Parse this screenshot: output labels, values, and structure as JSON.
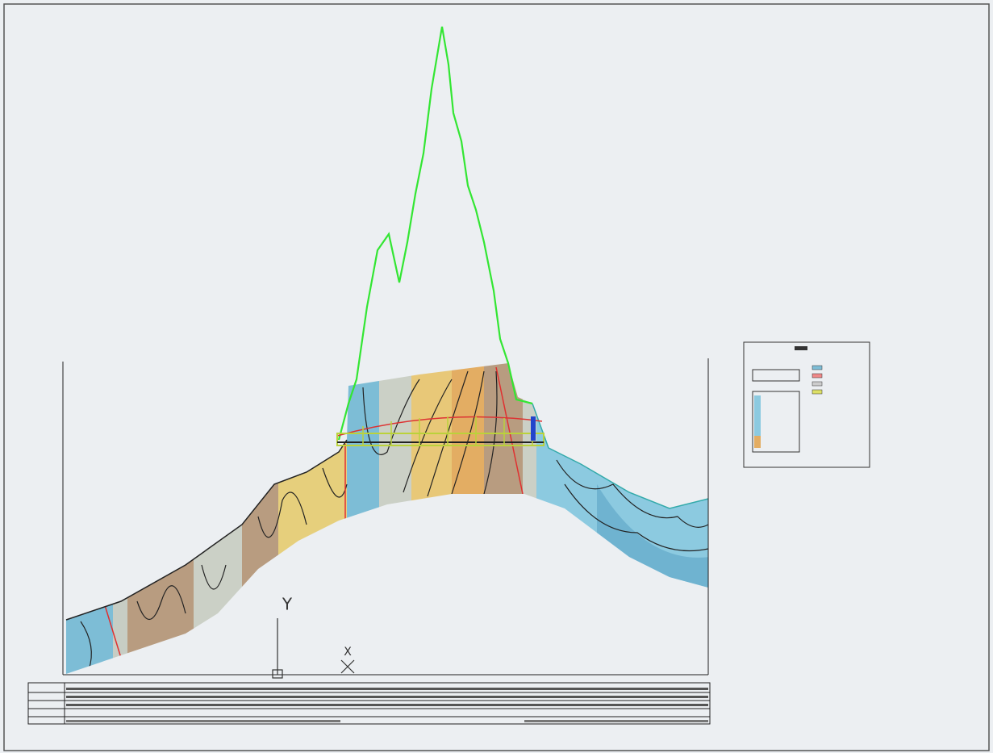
{
  "ucs": {
    "y_label": "Y",
    "x_label": "X"
  }
}
